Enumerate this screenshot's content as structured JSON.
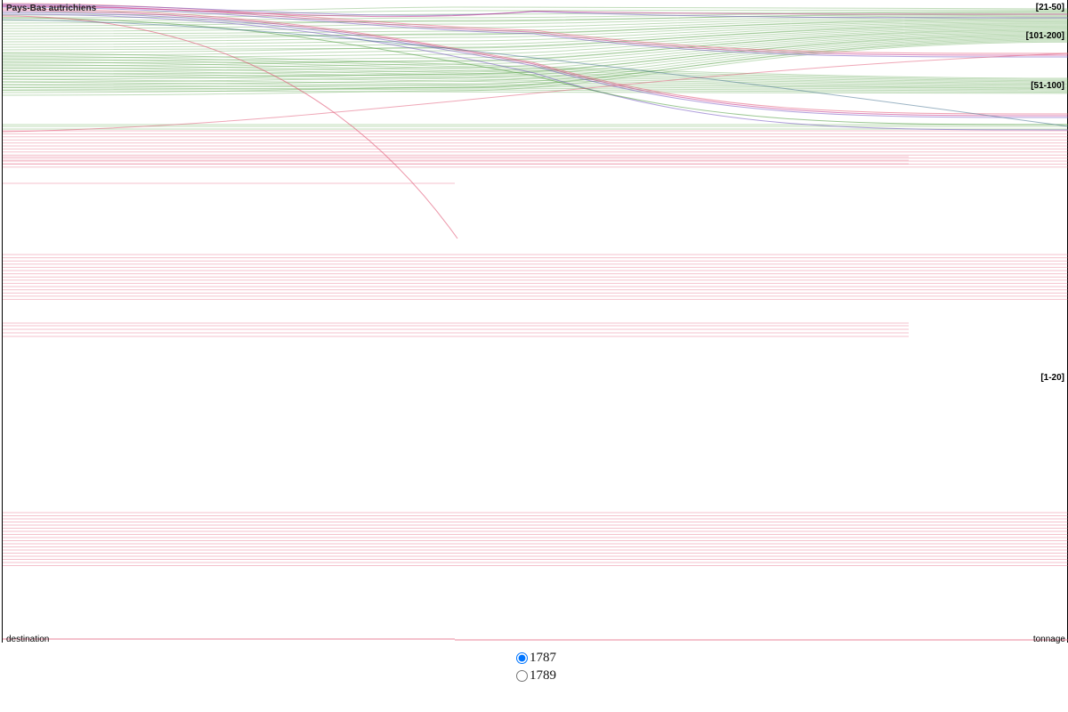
{
  "chart_data": {
    "type": "parallel-sets",
    "axes": {
      "left": "destination",
      "right": "tonnage"
    },
    "tonnage_categories": [
      "[21-50]",
      "[101-200]",
      "[51-100]",
      "[1-20]"
    ],
    "destination_labels": [
      "Pays-Bas autrichiens"
    ],
    "colors": {
      "green": "#4a9a3a",
      "pink": "#e05070",
      "purple": "#7050c0",
      "magenta": "#c02080"
    }
  },
  "year_selector": {
    "options": [
      {
        "label": "1787",
        "value": "1787",
        "checked": true
      },
      {
        "label": "1789",
        "value": "1789",
        "checked": false
      }
    ]
  }
}
